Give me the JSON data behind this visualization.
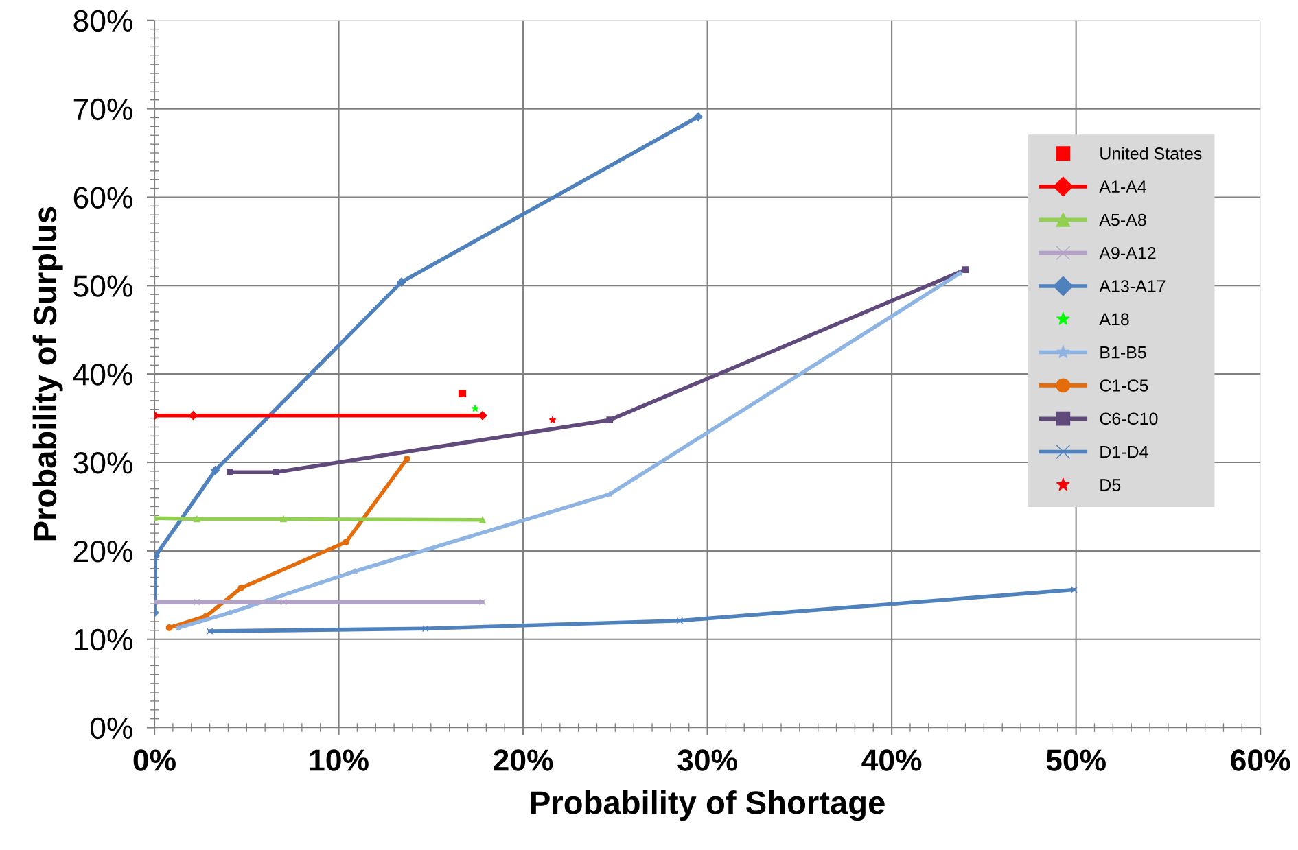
{
  "chart_data": {
    "type": "line",
    "xlabel": "Probability of Shortage",
    "ylabel": "Probability of Surplus",
    "xlim": [
      0,
      60
    ],
    "ylim": [
      0,
      80
    ],
    "xticks": [
      {
        "value": 0,
        "label": "0%"
      },
      {
        "value": 10,
        "label": "10%"
      },
      {
        "value": 20,
        "label": "20%"
      },
      {
        "value": 30,
        "label": "30%"
      },
      {
        "value": 40,
        "label": "40%"
      },
      {
        "value": 50,
        "label": "50%"
      },
      {
        "value": 60,
        "label": "60%"
      }
    ],
    "yticks": [
      {
        "value": 0,
        "label": "0%"
      },
      {
        "value": 10,
        "label": "10%"
      },
      {
        "value": 20,
        "label": "20%"
      },
      {
        "value": 30,
        "label": "30%"
      },
      {
        "value": 40,
        "label": "40%"
      },
      {
        "value": 50,
        "label": "50%"
      },
      {
        "value": 60,
        "label": "60%"
      },
      {
        "value": 70,
        "label": "70%"
      },
      {
        "value": 80,
        "label": "80%"
      }
    ],
    "grid": true,
    "legend": "top right",
    "series": [
      {
        "name": "United States",
        "type": "scatter",
        "marker": "square",
        "color": "#ff0000",
        "x": [
          16.7
        ],
        "values": [
          37.8
        ]
      },
      {
        "name": "A1-A4",
        "marker": "diamond",
        "color": "#ff0000",
        "x": [
          0,
          2.1,
          17.8
        ],
        "values": [
          35.3,
          35.3,
          35.3
        ]
      },
      {
        "name": "A5-A8",
        "marker": "triangle",
        "color": "#92d050",
        "x": [
          0,
          2.3,
          7.0,
          17.8
        ],
        "values": [
          23.7,
          23.6,
          23.6,
          23.5
        ]
      },
      {
        "name": "A9-A12",
        "marker": "cross",
        "color": "#b3a2c7",
        "x": [
          0,
          2.3,
          7.0,
          17.8
        ],
        "values": [
          14.2,
          14.2,
          14.2,
          14.2
        ]
      },
      {
        "name": "A13-A17",
        "marker": "diamond",
        "color": "#4f81bd",
        "x": [
          0,
          0.05,
          3.3,
          13.4,
          29.5
        ],
        "values": [
          13.0,
          19.4,
          29.1,
          50.4,
          69.1
        ]
      },
      {
        "name": "A18",
        "type": "scatter",
        "marker": "star",
        "color": "#00ff00",
        "x": [
          17.4
        ],
        "values": [
          36.1
        ]
      },
      {
        "name": "B1-B5",
        "marker": "star",
        "color": "#8eb4e3",
        "x": [
          1.3,
          4.1,
          10.9,
          24.7,
          43.7
        ],
        "values": [
          11.3,
          13.0,
          17.7,
          26.4,
          51.4
        ]
      },
      {
        "name": "C1-C5",
        "marker": "circle",
        "color": "#e46c0a",
        "x": [
          0.8,
          2.8,
          4.7,
          10.4,
          13.7
        ],
        "values": [
          11.3,
          12.6,
          15.8,
          21.0,
          30.4
        ]
      },
      {
        "name": "C6-C10",
        "marker": "square",
        "color": "#604a7b",
        "x": [
          4.1,
          6.6,
          24.7,
          44.0
        ],
        "values": [
          28.9,
          28.9,
          34.8,
          51.8
        ]
      },
      {
        "name": "D1-D4",
        "marker": "cross",
        "color": "#4f81bd",
        "x": [
          3.0,
          14.7,
          28.5,
          49.9
        ],
        "values": [
          10.9,
          11.2,
          12.1,
          15.6
        ]
      },
      {
        "name": "D5",
        "type": "scatter",
        "marker": "star",
        "color": "#ff0000",
        "x": [
          21.6
        ],
        "values": [
          34.8
        ]
      }
    ]
  }
}
